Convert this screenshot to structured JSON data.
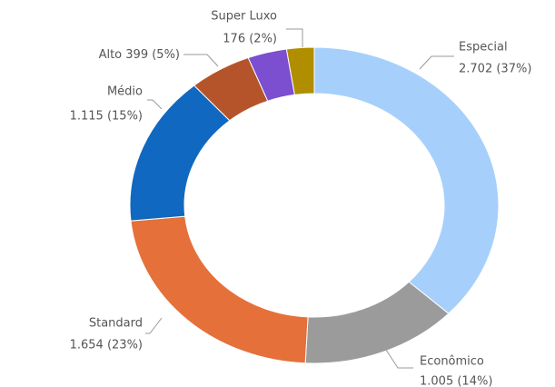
{
  "chart_data": {
    "type": "donut",
    "categories": [
      "Especial",
      "Econômico",
      "Standard",
      "Médio",
      "Alto",
      null,
      "Super Luxo"
    ],
    "values": [
      2702,
      1005,
      1654,
      1115,
      399,
      250,
      176
    ],
    "value_labels": [
      "2.702 (37%)",
      "1.005 (14%)",
      "1.654 (23%)",
      "1.115 (15%)",
      "399 (5%)",
      null,
      "176 (2%)"
    ],
    "colors": [
      "#a6d0fb",
      "#9b9b9b",
      "#e5703a",
      "#1068c0",
      "#b5542a",
      "#7b4fd0",
      "#b08e00"
    ]
  }
}
